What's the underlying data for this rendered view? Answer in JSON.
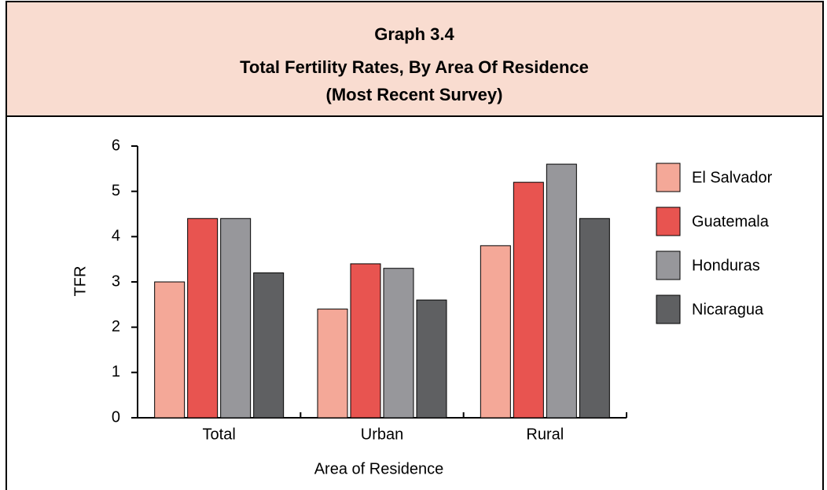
{
  "chart_data": {
    "type": "bar",
    "title": "Graph 3.4",
    "subtitle": [
      "Total Fertility Rates, By Area Of Residence",
      "(Most Recent Survey)"
    ],
    "x_label": "Area of Residence",
    "y_label": "TFR",
    "categories": [
      "Total",
      "Urban",
      "Rural"
    ],
    "series": [
      {
        "name": "El Salvador",
        "color": "#f4a898",
        "values": [
          3.0,
          2.4,
          3.8
        ]
      },
      {
        "name": "Guatemala",
        "color": "#e85450",
        "values": [
          4.4,
          3.4,
          5.2
        ]
      },
      {
        "name": "Honduras",
        "color": "#97979b",
        "values": [
          4.4,
          3.3,
          5.6
        ]
      },
      {
        "name": "Nicaragua",
        "color": "#5f6062",
        "values": [
          3.2,
          2.6,
          4.4
        ]
      }
    ],
    "ylim": [
      0,
      6
    ],
    "yticks": [
      0,
      1,
      2,
      3,
      4,
      5,
      6
    ],
    "legend": "right"
  }
}
